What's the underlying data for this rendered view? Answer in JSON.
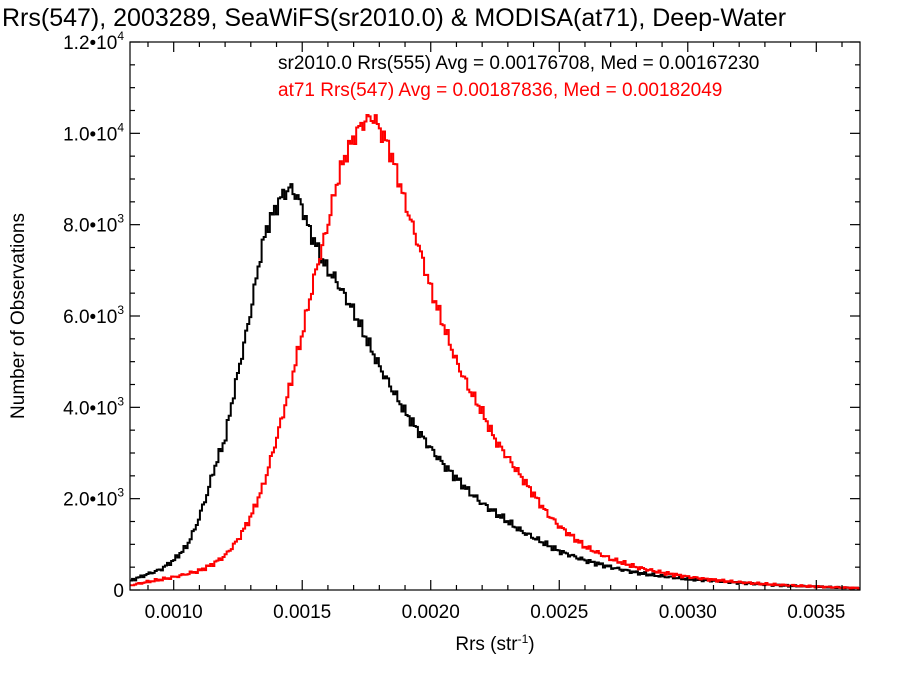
{
  "chart_data": {
    "type": "line",
    "title": "Rrs(547), 2003289, SeaWiFS(sr2010.0) & MODISA(at71), Deep-Water",
    "xlabel": "Rrs (str",
    "xlabel_sup": "-1",
    "xlabel_end": ")",
    "ylabel": "Number of Observations",
    "xlim": [
      0.00083,
      0.00367
    ],
    "ylim": [
      0,
      12000
    ],
    "x_ticks": [
      {
        "value": 0.001,
        "label": "0.0010"
      },
      {
        "value": 0.0015,
        "label": "0.0015"
      },
      {
        "value": 0.002,
        "label": "0.0020"
      },
      {
        "value": 0.0025,
        "label": "0.0025"
      },
      {
        "value": 0.003,
        "label": "0.0030"
      },
      {
        "value": 0.0035,
        "label": "0.0035"
      }
    ],
    "y_ticks": [
      {
        "value": 0,
        "mant": "0",
        "exp": ""
      },
      {
        "value": 2000,
        "mant": "2.0•10",
        "exp": "3"
      },
      {
        "value": 4000,
        "mant": "4.0•10",
        "exp": "3"
      },
      {
        "value": 6000,
        "mant": "6.0•10",
        "exp": "3"
      },
      {
        "value": 8000,
        "mant": "8.0•10",
        "exp": "3"
      },
      {
        "value": 10000,
        "mant": "1.0•10",
        "exp": "4"
      },
      {
        "value": 12000,
        "mant": "1.2•10",
        "exp": "4"
      }
    ],
    "grid": false,
    "legend_placement": "top-right",
    "series": [
      {
        "name": "sr2010.0 Rrs(555) Avg = 0.00176708, Med = 0.00167230",
        "color": "#000000",
        "x": [
          0.00083,
          0.0009,
          0.00095,
          0.001,
          0.00105,
          0.00108,
          0.0011,
          0.00113,
          0.00116,
          0.0012,
          0.00123,
          0.00126,
          0.0013,
          0.00133,
          0.00136,
          0.0014,
          0.00143,
          0.00146,
          0.00148,
          0.0015,
          0.00152,
          0.00155,
          0.00158,
          0.0016,
          0.00163,
          0.00166,
          0.0017,
          0.00175,
          0.0018,
          0.00185,
          0.0019,
          0.00195,
          0.002,
          0.00205,
          0.0021,
          0.00215,
          0.0022,
          0.00225,
          0.0023,
          0.00235,
          0.0024,
          0.0025,
          0.0026,
          0.0027,
          0.0028,
          0.0029,
          0.003,
          0.0031,
          0.0032,
          0.0033,
          0.0034,
          0.0035,
          0.0036,
          0.00367
        ],
        "values": [
          200,
          350,
          450,
          650,
          950,
          1300,
          1600,
          2100,
          2700,
          3300,
          4200,
          5000,
          6100,
          7100,
          7900,
          8400,
          8700,
          8800,
          8600,
          8400,
          8000,
          7600,
          7200,
          7000,
          6800,
          6500,
          6100,
          5500,
          4900,
          4400,
          3900,
          3500,
          3100,
          2750,
          2450,
          2150,
          1900,
          1700,
          1500,
          1300,
          1150,
          850,
          650,
          500,
          380,
          300,
          240,
          200,
          160,
          120,
          90,
          70,
          50,
          40
        ]
      },
      {
        "name": "at71 Rrs(547) Avg = 0.00187836, Med = 0.00182049",
        "color": "#ff0000",
        "x": [
          0.00083,
          0.0009,
          0.001,
          0.0011,
          0.00115,
          0.0012,
          0.00125,
          0.0013,
          0.00135,
          0.0014,
          0.00145,
          0.0015,
          0.00155,
          0.0016,
          0.00163,
          0.00166,
          0.0017,
          0.00172,
          0.00175,
          0.00178,
          0.0018,
          0.00183,
          0.00186,
          0.0019,
          0.00195,
          0.002,
          0.00205,
          0.0021,
          0.00215,
          0.0022,
          0.00225,
          0.0023,
          0.00235,
          0.0024,
          0.00245,
          0.0025,
          0.0026,
          0.0027,
          0.0028,
          0.0029,
          0.003,
          0.0031,
          0.0032,
          0.0033,
          0.0034,
          0.0035,
          0.0036,
          0.00367
        ],
        "values": [
          100,
          180,
          280,
          420,
          560,
          750,
          1100,
          1600,
          2300,
          3300,
          4400,
          5600,
          6900,
          8000,
          8800,
          9400,
          9900,
          10100,
          10300,
          10350,
          10100,
          9800,
          9300,
          8500,
          7600,
          6600,
          5800,
          5000,
          4400,
          3900,
          3300,
          2900,
          2500,
          2100,
          1700,
          1400,
          950,
          680,
          500,
          380,
          290,
          220,
          170,
          130,
          100,
          75,
          55,
          40
        ]
      }
    ]
  }
}
